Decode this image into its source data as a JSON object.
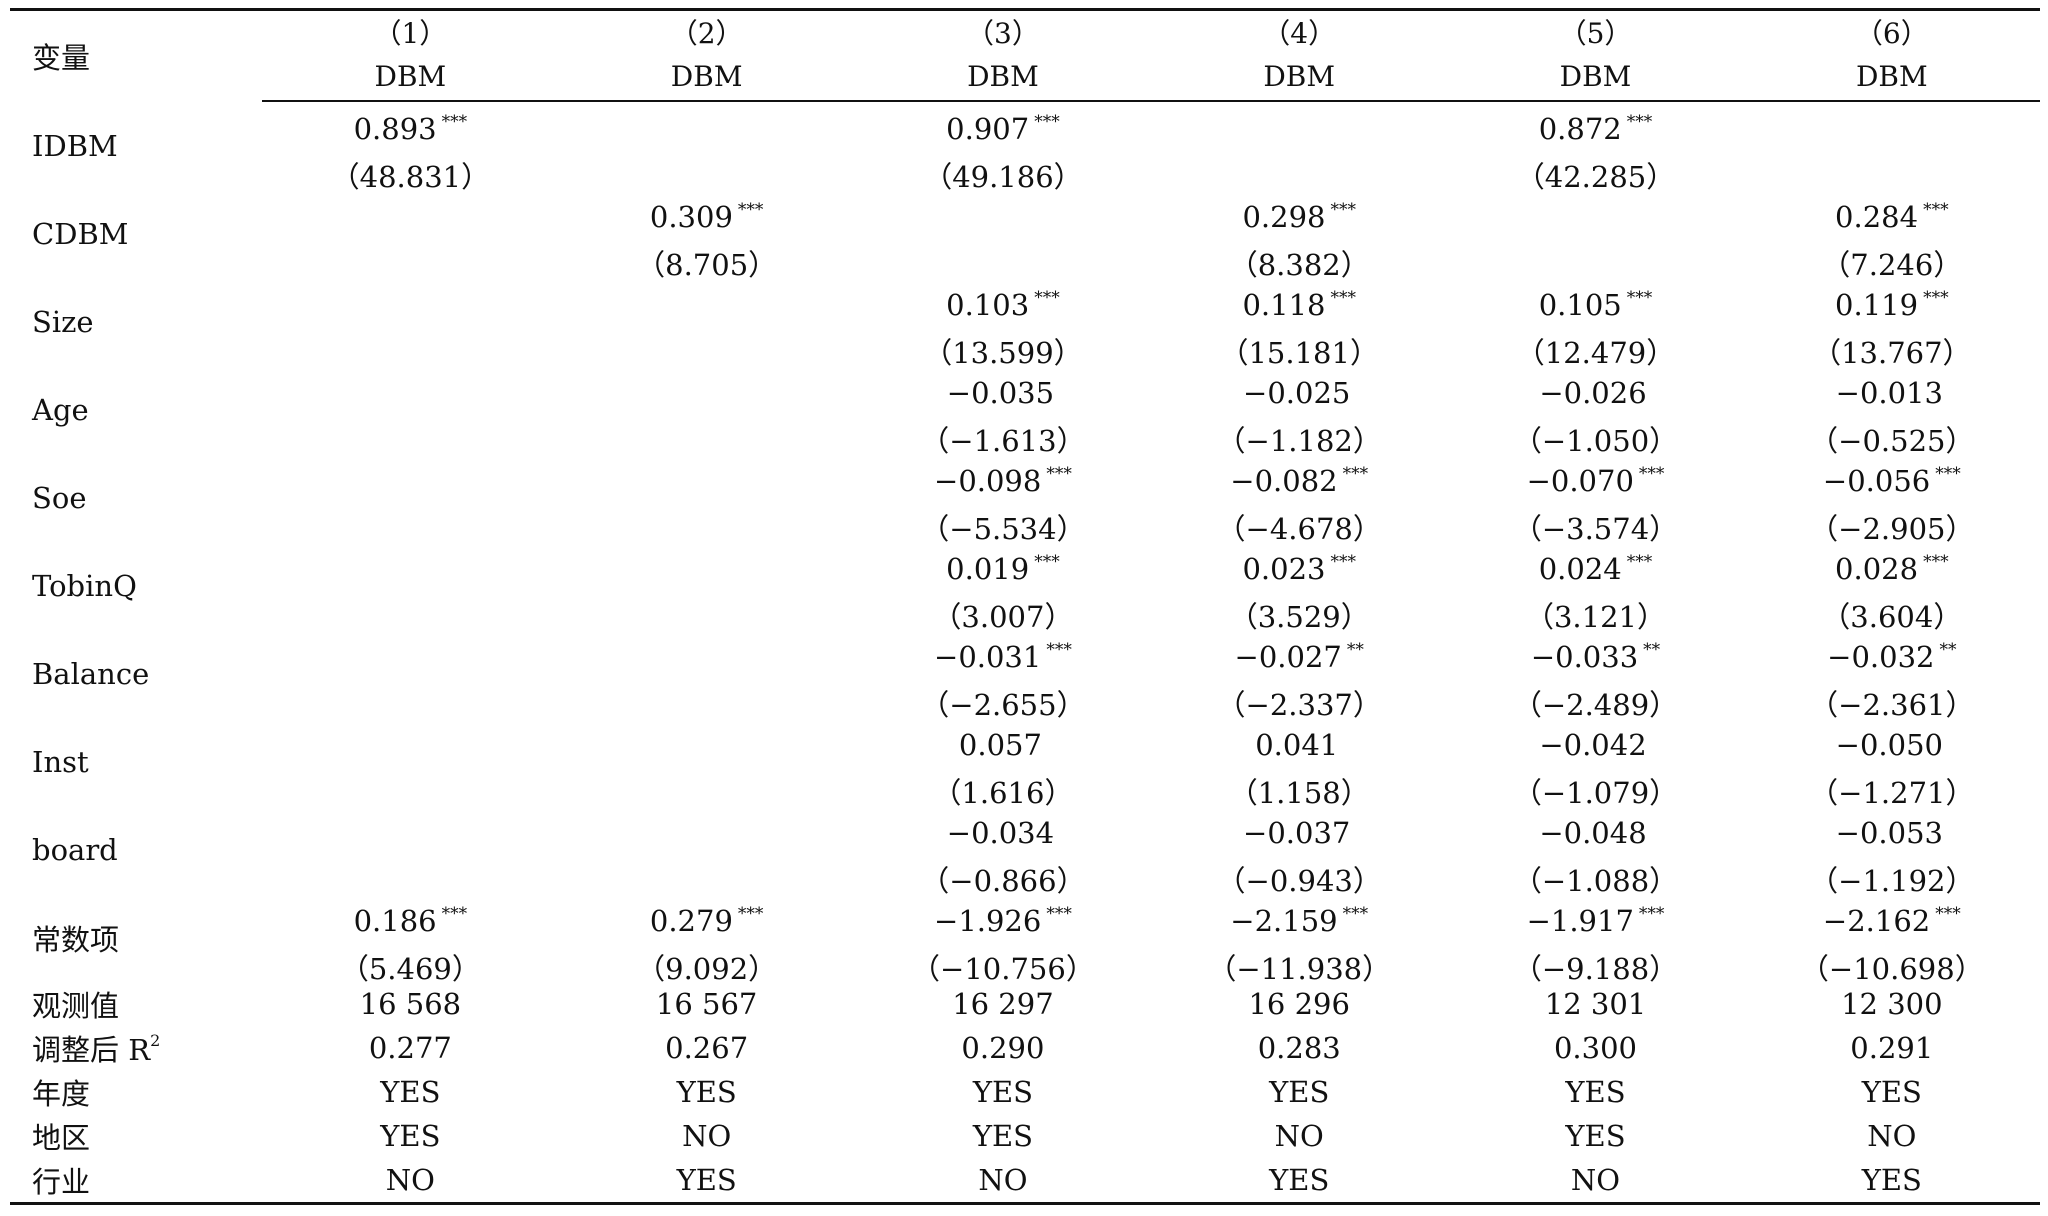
{
  "header": {
    "corner": "变量",
    "columns": [
      {
        "num": "（1）",
        "dep": "DBM"
      },
      {
        "num": "（2）",
        "dep": "DBM"
      },
      {
        "num": "（3）",
        "dep": "DBM"
      },
      {
        "num": "（4）",
        "dep": "DBM"
      },
      {
        "num": "（5）",
        "dep": "DBM"
      },
      {
        "num": "（6）",
        "dep": "DBM"
      }
    ]
  },
  "rows": [
    {
      "name": "IDBM",
      "cells": [
        {
          "v": "0.893",
          "s": "***",
          "t": "（48.831）"
        },
        {
          "v": "",
          "s": "",
          "t": ""
        },
        {
          "v": "0.907",
          "s": "***",
          "t": "（49.186）"
        },
        {
          "v": "",
          "s": "",
          "t": ""
        },
        {
          "v": "0.872",
          "s": "***",
          "t": "（42.285）"
        },
        {
          "v": "",
          "s": "",
          "t": ""
        }
      ]
    },
    {
      "name": "CDBM",
      "cells": [
        {
          "v": "",
          "s": "",
          "t": ""
        },
        {
          "v": "0.309",
          "s": "***",
          "t": "（8.705）"
        },
        {
          "v": "",
          "s": "",
          "t": ""
        },
        {
          "v": "0.298",
          "s": "***",
          "t": "（8.382）"
        },
        {
          "v": "",
          "s": "",
          "t": ""
        },
        {
          "v": "0.284",
          "s": "***",
          "t": "（7.246）"
        }
      ]
    },
    {
      "name": "Size",
      "cells": [
        {
          "v": "",
          "s": "",
          "t": ""
        },
        {
          "v": "",
          "s": "",
          "t": ""
        },
        {
          "v": "0.103",
          "s": "***",
          "t": "（13.599）"
        },
        {
          "v": "0.118",
          "s": "***",
          "t": "（15.181）"
        },
        {
          "v": "0.105",
          "s": "***",
          "t": "（12.479）"
        },
        {
          "v": "0.119",
          "s": "***",
          "t": "（13.767）"
        }
      ]
    },
    {
      "name": "Age",
      "cells": [
        {
          "v": "",
          "s": "",
          "t": ""
        },
        {
          "v": "",
          "s": "",
          "t": ""
        },
        {
          "v": "−0.035",
          "s": "",
          "t": "（−1.613）"
        },
        {
          "v": "−0.025",
          "s": "",
          "t": "（−1.182）"
        },
        {
          "v": "−0.026",
          "s": "",
          "t": "（−1.050）"
        },
        {
          "v": "−0.013",
          "s": "",
          "t": "（−0.525）"
        }
      ]
    },
    {
      "name": "Soe",
      "cells": [
        {
          "v": "",
          "s": "",
          "t": ""
        },
        {
          "v": "",
          "s": "",
          "t": ""
        },
        {
          "v": "−0.098",
          "s": "***",
          "t": "（−5.534）"
        },
        {
          "v": "−0.082",
          "s": "***",
          "t": "（−4.678）"
        },
        {
          "v": "−0.070",
          "s": "***",
          "t": "（−3.574）"
        },
        {
          "v": "−0.056",
          "s": "***",
          "t": "（−2.905）"
        }
      ]
    },
    {
      "name": "TobinQ",
      "cells": [
        {
          "v": "",
          "s": "",
          "t": ""
        },
        {
          "v": "",
          "s": "",
          "t": ""
        },
        {
          "v": "0.019",
          "s": "***",
          "t": "（3.007）"
        },
        {
          "v": "0.023",
          "s": "***",
          "t": "（3.529）"
        },
        {
          "v": "0.024",
          "s": "***",
          "t": "（3.121）"
        },
        {
          "v": "0.028",
          "s": "***",
          "t": "（3.604）"
        }
      ]
    },
    {
      "name": "Balance",
      "cells": [
        {
          "v": "",
          "s": "",
          "t": ""
        },
        {
          "v": "",
          "s": "",
          "t": ""
        },
        {
          "v": "−0.031",
          "s": "***",
          "t": "（−2.655）"
        },
        {
          "v": "−0.027",
          "s": "**",
          "t": "（−2.337）"
        },
        {
          "v": "−0.033",
          "s": "**",
          "t": "（−2.489）"
        },
        {
          "v": "−0.032",
          "s": "**",
          "t": "（−2.361）"
        }
      ]
    },
    {
      "name": "Inst",
      "cells": [
        {
          "v": "",
          "s": "",
          "t": ""
        },
        {
          "v": "",
          "s": "",
          "t": ""
        },
        {
          "v": "0.057",
          "s": "",
          "t": "（1.616）"
        },
        {
          "v": "0.041",
          "s": "",
          "t": "（1.158）"
        },
        {
          "v": "−0.042",
          "s": "",
          "t": "（−1.079）"
        },
        {
          "v": "−0.050",
          "s": "",
          "t": "（−1.271）"
        }
      ]
    },
    {
      "name": "board",
      "cells": [
        {
          "v": "",
          "s": "",
          "t": ""
        },
        {
          "v": "",
          "s": "",
          "t": ""
        },
        {
          "v": "−0.034",
          "s": "",
          "t": "（−0.866）"
        },
        {
          "v": "−0.037",
          "s": "",
          "t": "（−0.943）"
        },
        {
          "v": "−0.048",
          "s": "",
          "t": "（−1.088）"
        },
        {
          "v": "−0.053",
          "s": "",
          "t": "（−1.192）"
        }
      ]
    },
    {
      "name": "常数项",
      "cells": [
        {
          "v": "0.186",
          "s": "***",
          "t": "（5.469）"
        },
        {
          "v": "0.279",
          "s": "***",
          "t": "（9.092）"
        },
        {
          "v": "−1.926",
          "s": "***",
          "t": "（−10.756）"
        },
        {
          "v": "−2.159",
          "s": "***",
          "t": "（−11.938）"
        },
        {
          "v": "−1.917",
          "s": "***",
          "t": "（−9.188）"
        },
        {
          "v": "−2.162",
          "s": "***",
          "t": "（−10.698）"
        }
      ]
    }
  ],
  "footer": {
    "obs": {
      "label": "观测值",
      "values": [
        "16 568",
        "16 567",
        "16 297",
        "16 296",
        "12 301",
        "12 300"
      ]
    },
    "r2": {
      "label": "调整后 R",
      "sup": "2",
      "values": [
        "0.277",
        "0.267",
        "0.290",
        "0.283",
        "0.300",
        "0.291"
      ]
    },
    "year": {
      "label": "年度",
      "values": [
        "YES",
        "YES",
        "YES",
        "YES",
        "YES",
        "YES"
      ]
    },
    "region": {
      "label": "地区",
      "values": [
        "YES",
        "NO",
        "YES",
        "NO",
        "YES",
        "NO"
      ]
    },
    "industry": {
      "label": "行业",
      "values": [
        "NO",
        "YES",
        "NO",
        "YES",
        "NO",
        "YES"
      ]
    }
  }
}
